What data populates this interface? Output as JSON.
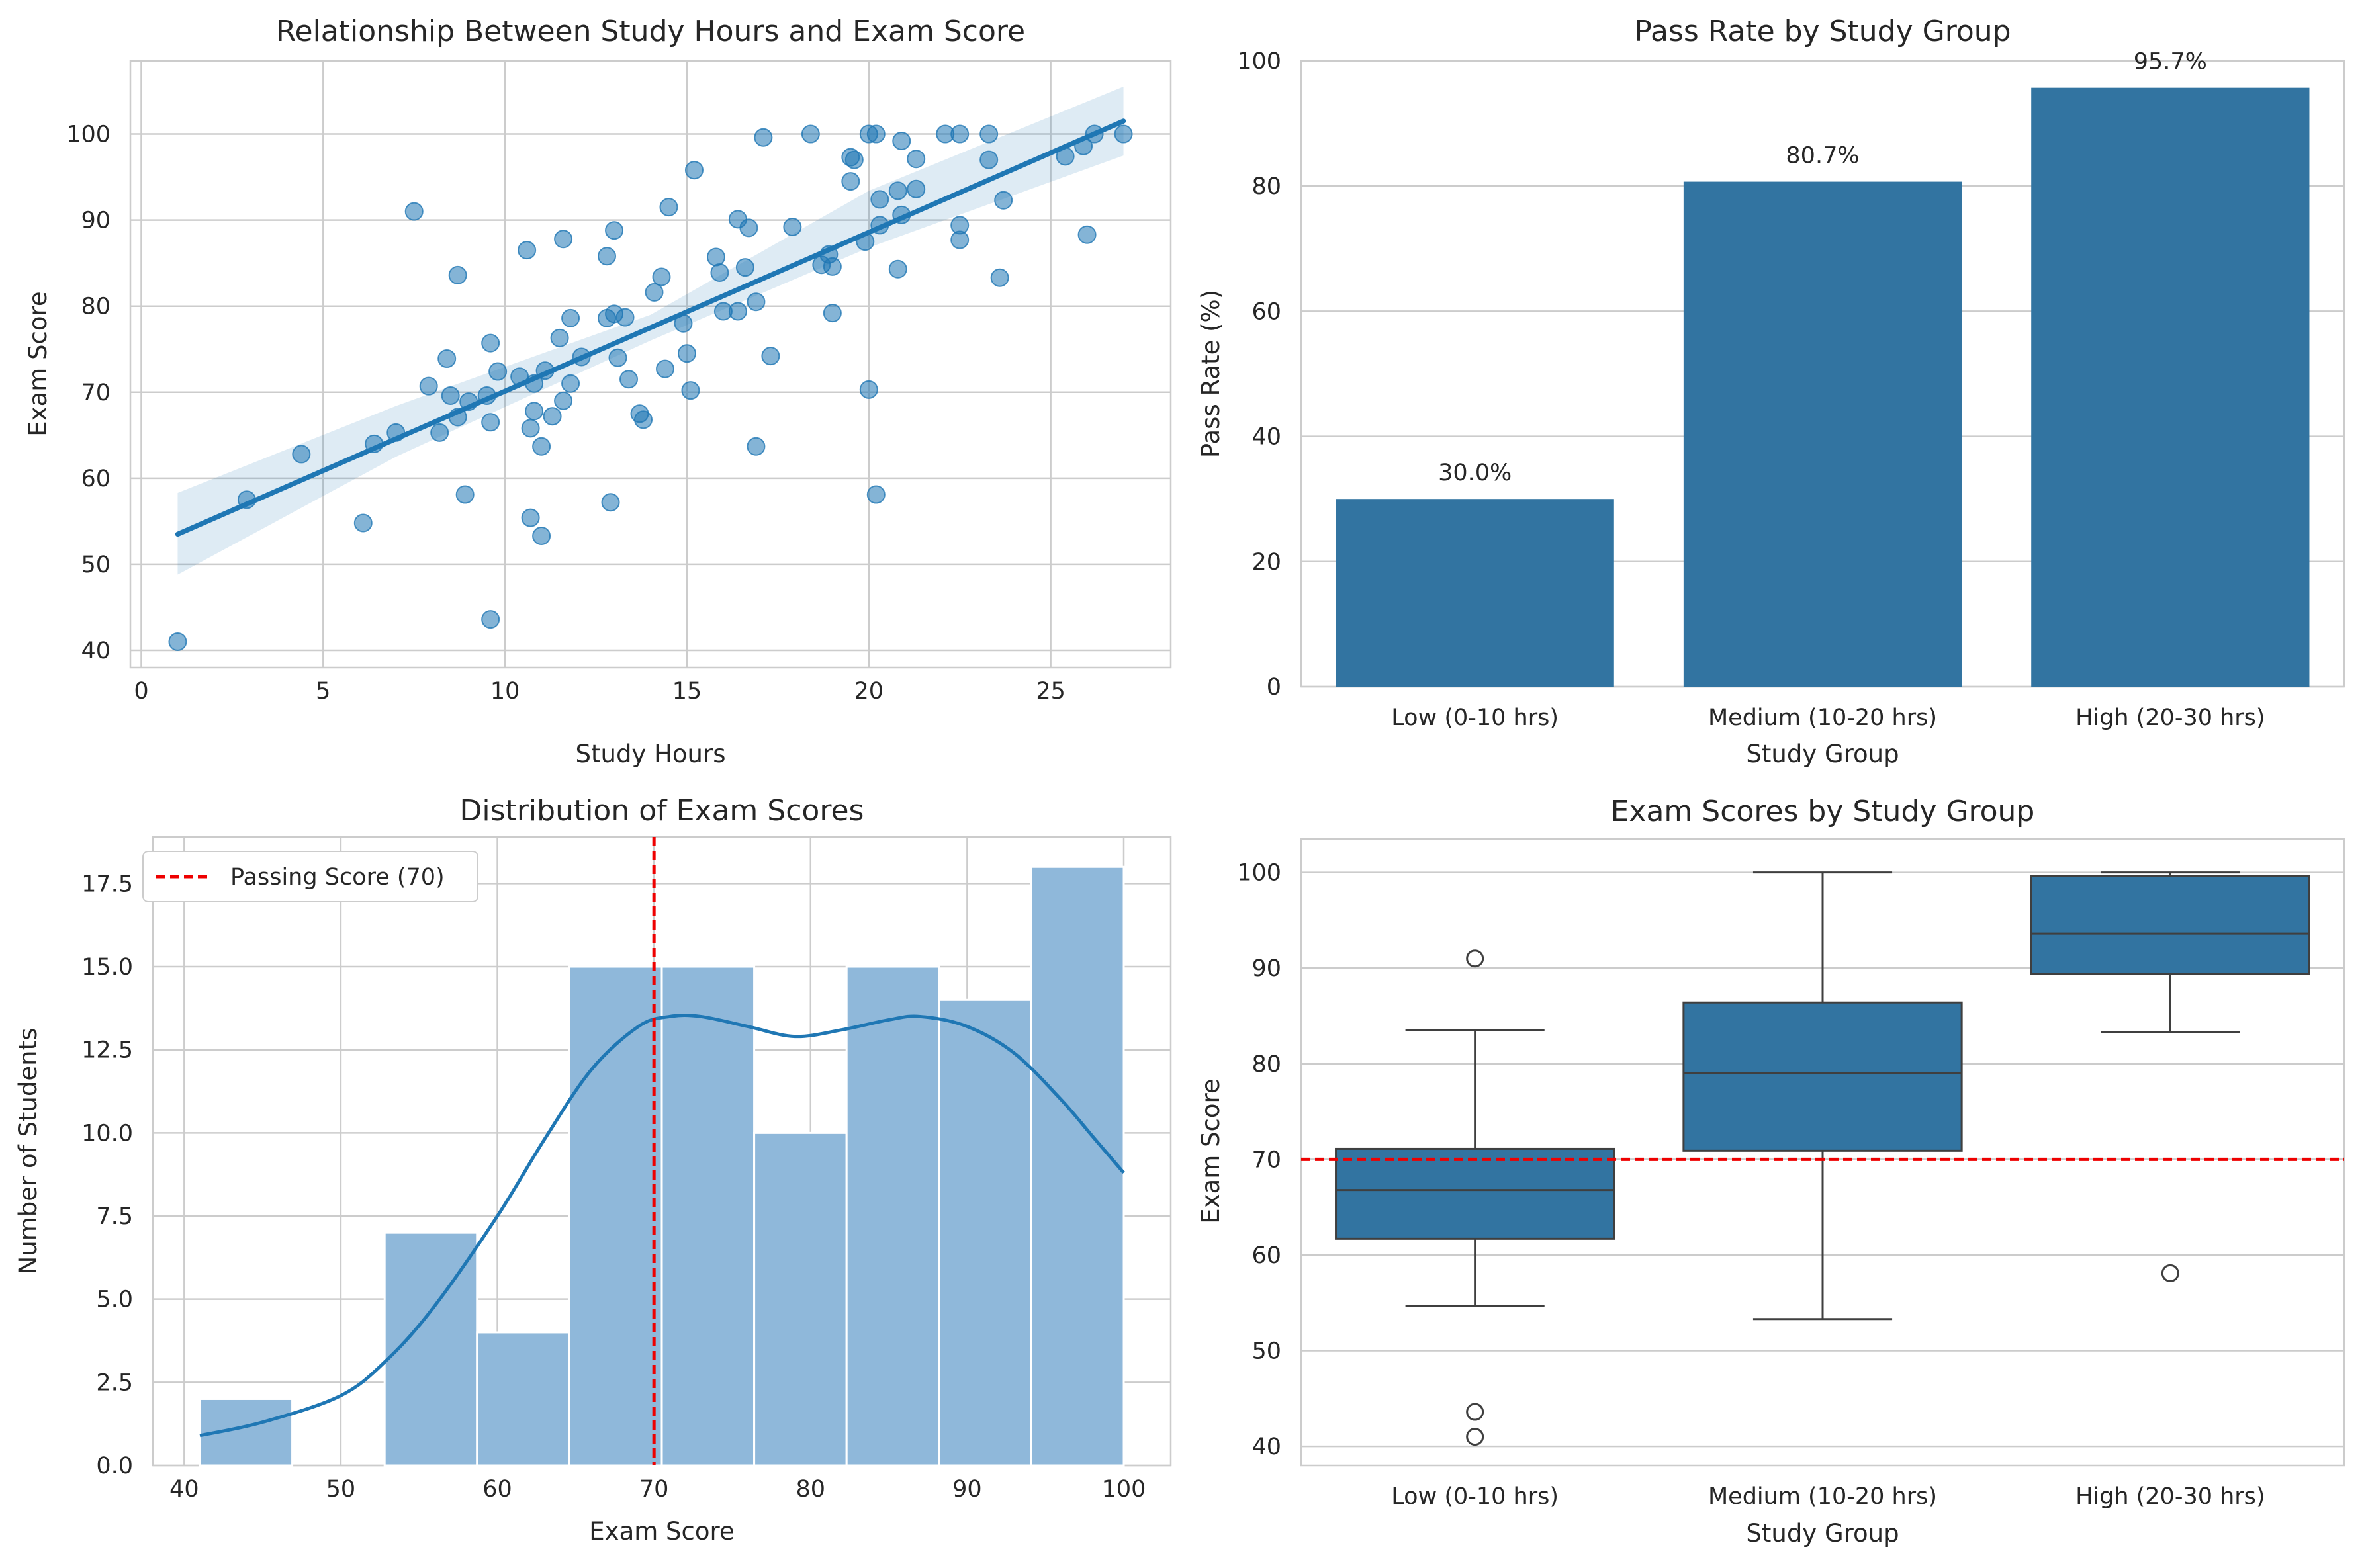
{
  "colors": {
    "primary": "#1f77b4",
    "bar": "#3274a1",
    "hist": "#8fb8da",
    "grid": "#cccccc",
    "spine": "#cccccc",
    "ref_line": "#ee0000",
    "text": "#262626",
    "box_line": "#3f3f3f"
  },
  "chart_data": [
    {
      "type": "scatter",
      "title": "Relationship Between Study Hours and Exam Score",
      "xlabel": "Study Hours",
      "ylabel": "Exam Score",
      "xlim": [
        -0.3,
        28.3
      ],
      "ylim": [
        38,
        108.5
      ],
      "xticks": [
        0,
        5,
        10,
        15,
        20,
        25
      ],
      "yticks": [
        40,
        50,
        60,
        70,
        80,
        90,
        100
      ],
      "regression": {
        "x": [
          1.0,
          27.0
        ],
        "y": [
          53.5,
          101.5
        ]
      },
      "ci_band": {
        "x": [
          1.0,
          7,
          14,
          20,
          27.0
        ],
        "lower": [
          48.8,
          62.5,
          76.0,
          86.8,
          97.5
        ],
        "upper": [
          58.3,
          68.4,
          79.0,
          93.4,
          105.5
        ]
      },
      "points": [
        [
          1.0,
          41.0
        ],
        [
          2.9,
          57.5
        ],
        [
          4.4,
          62.8
        ],
        [
          6.1,
          54.8
        ],
        [
          6.4,
          64.0
        ],
        [
          7.0,
          65.3
        ],
        [
          7.5,
          91.0
        ],
        [
          7.9,
          70.7
        ],
        [
          8.2,
          65.3
        ],
        [
          8.4,
          73.9
        ],
        [
          8.5,
          69.6
        ],
        [
          8.7,
          67.1
        ],
        [
          8.7,
          83.6
        ],
        [
          8.9,
          58.1
        ],
        [
          9.0,
          68.9
        ],
        [
          9.5,
          69.6
        ],
        [
          9.6,
          66.5
        ],
        [
          9.6,
          75.7
        ],
        [
          9.6,
          43.6
        ],
        [
          9.8,
          72.4
        ],
        [
          10.4,
          71.8
        ],
        [
          10.6,
          86.5
        ],
        [
          10.7,
          55.4
        ],
        [
          10.7,
          65.8
        ],
        [
          10.8,
          71.0
        ],
        [
          10.8,
          67.8
        ],
        [
          11.0,
          63.7
        ],
        [
          11.0,
          53.3
        ],
        [
          11.1,
          72.5
        ],
        [
          11.3,
          67.2
        ],
        [
          11.5,
          76.3
        ],
        [
          11.6,
          69.0
        ],
        [
          11.6,
          87.8
        ],
        [
          11.8,
          71.0
        ],
        [
          11.8,
          78.6
        ],
        [
          12.1,
          74.1
        ],
        [
          12.8,
          85.8
        ],
        [
          12.8,
          78.6
        ],
        [
          12.9,
          57.2
        ],
        [
          13.0,
          79.1
        ],
        [
          13.0,
          88.8
        ],
        [
          13.1,
          74.0
        ],
        [
          13.3,
          78.7
        ],
        [
          13.4,
          71.5
        ],
        [
          13.7,
          67.5
        ],
        [
          13.8,
          66.8
        ],
        [
          14.1,
          81.6
        ],
        [
          14.3,
          83.4
        ],
        [
          14.4,
          72.7
        ],
        [
          14.5,
          91.5
        ],
        [
          14.9,
          78.0
        ],
        [
          15.0,
          74.5
        ],
        [
          15.1,
          70.2
        ],
        [
          15.2,
          95.8
        ],
        [
          15.8,
          85.7
        ],
        [
          15.9,
          83.9
        ],
        [
          16.0,
          79.4
        ],
        [
          16.4,
          90.1
        ],
        [
          16.4,
          79.4
        ],
        [
          16.6,
          84.5
        ],
        [
          16.7,
          89.1
        ],
        [
          16.9,
          80.5
        ],
        [
          16.9,
          63.7
        ],
        [
          17.1,
          99.6
        ],
        [
          17.3,
          74.2
        ],
        [
          17.9,
          89.2
        ],
        [
          18.4,
          100.0
        ],
        [
          18.7,
          84.8
        ],
        [
          18.9,
          86.0
        ],
        [
          19.0,
          84.6
        ],
        [
          19.0,
          79.2
        ],
        [
          19.5,
          94.5
        ],
        [
          19.5,
          97.3
        ],
        [
          19.6,
          97.0
        ],
        [
          19.9,
          87.5
        ],
        [
          20.0,
          70.3
        ],
        [
          20.0,
          100.0
        ],
        [
          20.2,
          100.0
        ],
        [
          20.2,
          58.1
        ],
        [
          20.3,
          92.4
        ],
        [
          20.3,
          89.4
        ],
        [
          20.8,
          93.4
        ],
        [
          20.8,
          84.3
        ],
        [
          20.9,
          99.2
        ],
        [
          20.9,
          90.6
        ],
        [
          21.3,
          97.1
        ],
        [
          21.3,
          93.6
        ],
        [
          22.1,
          100.0
        ],
        [
          22.5,
          100.0
        ],
        [
          22.5,
          89.4
        ],
        [
          22.5,
          87.7
        ],
        [
          23.3,
          100.0
        ],
        [
          23.3,
          97.0
        ],
        [
          23.6,
          83.3
        ],
        [
          23.7,
          92.3
        ],
        [
          25.4,
          97.4
        ],
        [
          25.9,
          98.6
        ],
        [
          26.0,
          88.3
        ],
        [
          26.2,
          100.0
        ],
        [
          27.0,
          100.0
        ]
      ]
    },
    {
      "type": "bar",
      "title": "Pass Rate by Study Group",
      "xlabel": "Study Group",
      "ylabel": "Pass Rate (%)",
      "categories": [
        "Low (0-10 hrs)",
        "Medium (10-20 hrs)",
        "High (20-30 hrs)"
      ],
      "values": [
        30.0,
        80.7,
        95.7
      ],
      "labels": [
        "30.0%",
        "80.7%",
        "95.7%"
      ],
      "ylim": [
        0,
        100
      ],
      "yticks": [
        0,
        20,
        40,
        60,
        80,
        100
      ]
    },
    {
      "type": "histogram",
      "title": "Distribution of Exam Scores",
      "xlabel": "Exam Score",
      "ylabel": "Number of Students",
      "xlim": [
        38.0,
        103.0
      ],
      "ylim": [
        0,
        18.9
      ],
      "xticks": [
        40,
        50,
        60,
        70,
        80,
        90,
        100
      ],
      "yticks": [
        0.0,
        2.5,
        5.0,
        7.5,
        10.0,
        12.5,
        15.0,
        17.5
      ],
      "bin_edges": [
        41.0,
        46.9,
        52.8,
        58.7,
        64.6,
        70.5,
        76.4,
        82.3,
        88.2,
        94.1,
        100.0
      ],
      "counts": [
        2,
        0,
        7,
        4,
        15,
        15,
        10,
        15,
        14,
        18
      ],
      "kde": {
        "x": [
          41,
          45,
          50,
          53,
          56,
          60,
          63,
          66,
          69,
          71,
          73,
          76,
          79,
          82,
          85,
          87,
          90,
          93,
          96,
          98,
          100
        ],
        "y": [
          0.9,
          1.3,
          2.1,
          3.2,
          4.8,
          7.5,
          9.8,
          11.9,
          13.2,
          13.5,
          13.5,
          13.2,
          12.9,
          13.1,
          13.4,
          13.5,
          13.2,
          12.4,
          11.0,
          9.9,
          8.8
        ]
      },
      "passing_line": 70,
      "legend": "Passing Score (70)"
    },
    {
      "type": "box",
      "title": "Exam Scores by Study Group",
      "xlabel": "Study Group",
      "ylabel": "Exam Score",
      "categories": [
        "Low (0-10 hrs)",
        "Medium (10-20 hrs)",
        "High (20-30 hrs)"
      ],
      "ylim": [
        38,
        103.5
      ],
      "yticks": [
        40,
        50,
        60,
        70,
        80,
        90,
        100
      ],
      "boxes": [
        {
          "whislo": 54.7,
          "q1": 61.7,
          "med": 66.8,
          "q3": 71.1,
          "whishi": 83.5,
          "fliers": [
            91.0,
            43.6,
            41.0
          ]
        },
        {
          "whislo": 53.3,
          "q1": 70.9,
          "med": 79.0,
          "q3": 86.4,
          "whishi": 100.0,
          "fliers": []
        },
        {
          "whislo": 83.3,
          "q1": 89.4,
          "med": 93.6,
          "q3": 99.6,
          "whishi": 100.0,
          "fliers": [
            58.1
          ]
        }
      ],
      "passing_line": 70
    }
  ]
}
